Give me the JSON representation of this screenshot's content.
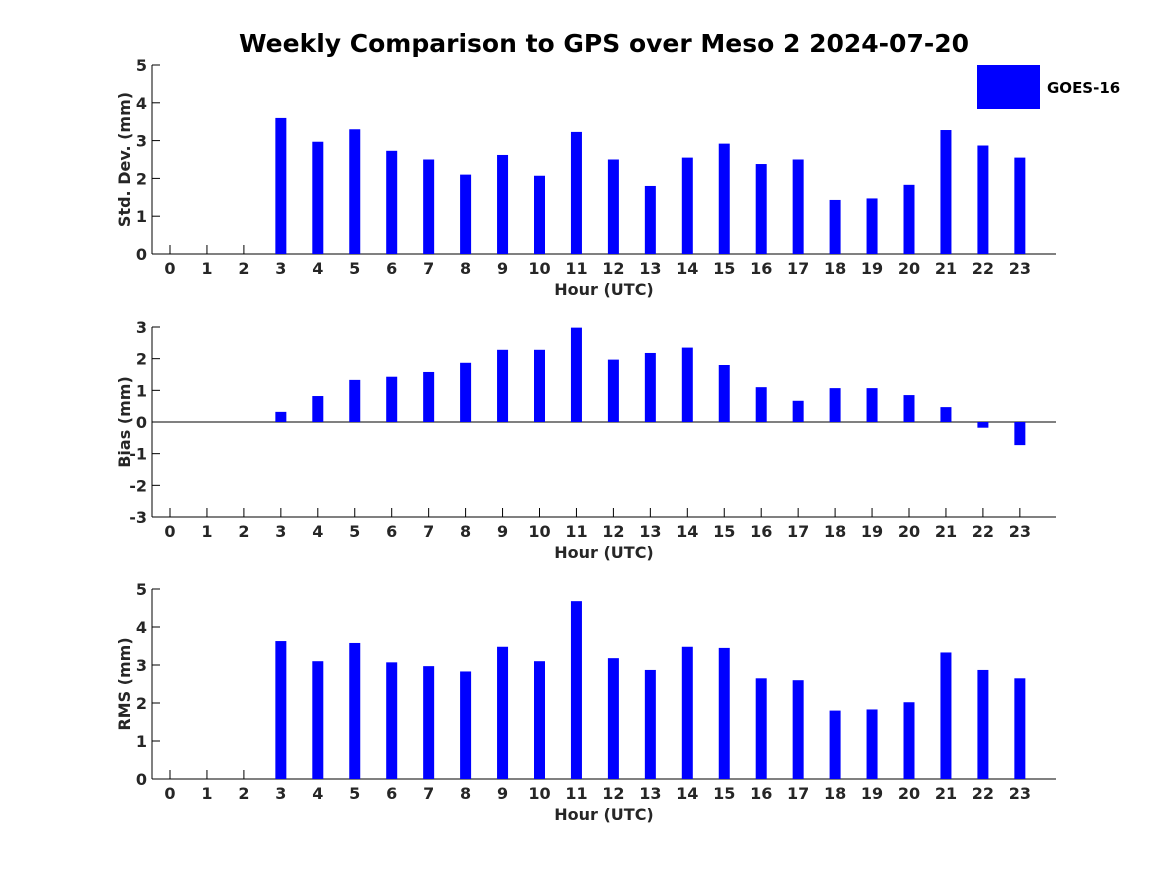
{
  "title": "Weekly Comparison to GPS over Meso 2 2024-07-20",
  "legend": {
    "label": "GOES-16",
    "color": "#0000ff"
  },
  "chart_data": [
    {
      "type": "bar",
      "name": "std-dev",
      "xlabel": "Hour (UTC)",
      "ylabel": "Std. Dev. (mm)",
      "ylim": [
        0,
        5
      ],
      "yticks": [
        "0",
        "1",
        "2",
        "3",
        "4",
        "5"
      ],
      "categories": [
        "0",
        "1",
        "2",
        "3",
        "4",
        "5",
        "6",
        "7",
        "8",
        "9",
        "10",
        "11",
        "12",
        "13",
        "14",
        "15",
        "16",
        "17",
        "18",
        "19",
        "20",
        "21",
        "22",
        "23"
      ],
      "series": [
        {
          "name": "GOES-16",
          "values": [
            null,
            null,
            null,
            3.6,
            2.97,
            3.3,
            2.73,
            2.5,
            2.1,
            2.62,
            2.07,
            3.23,
            2.5,
            1.8,
            2.55,
            2.92,
            2.38,
            2.5,
            1.43,
            1.47,
            1.83,
            3.28,
            2.87,
            2.55
          ]
        }
      ]
    },
    {
      "type": "bar",
      "name": "bias",
      "xlabel": "Hour (UTC)",
      "ylabel": "Bias (mm)",
      "ylim": [
        -3,
        3
      ],
      "yticks": [
        "-3",
        "-2",
        "-1",
        "0",
        "1",
        "2",
        "3"
      ],
      "categories": [
        "0",
        "1",
        "2",
        "3",
        "4",
        "5",
        "6",
        "7",
        "8",
        "9",
        "10",
        "11",
        "12",
        "13",
        "14",
        "15",
        "16",
        "17",
        "18",
        "19",
        "20",
        "21",
        "22",
        "23"
      ],
      "series": [
        {
          "name": "GOES-16",
          "values": [
            null,
            null,
            null,
            0.32,
            0.82,
            1.33,
            1.43,
            1.58,
            1.87,
            2.28,
            2.28,
            2.98,
            1.97,
            2.18,
            2.35,
            1.8,
            1.1,
            0.67,
            1.07,
            1.07,
            0.85,
            0.47,
            -0.18,
            -0.73
          ]
        }
      ]
    },
    {
      "type": "bar",
      "name": "rms",
      "xlabel": "Hour (UTC)",
      "ylabel": "RMS (mm)",
      "ylim": [
        0,
        5
      ],
      "yticks": [
        "0",
        "1",
        "2",
        "3",
        "4",
        "5"
      ],
      "categories": [
        "0",
        "1",
        "2",
        "3",
        "4",
        "5",
        "6",
        "7",
        "8",
        "9",
        "10",
        "11",
        "12",
        "13",
        "14",
        "15",
        "16",
        "17",
        "18",
        "19",
        "20",
        "21",
        "22",
        "23"
      ],
      "series": [
        {
          "name": "GOES-16",
          "values": [
            null,
            null,
            null,
            3.63,
            3.1,
            3.58,
            3.07,
            2.97,
            2.83,
            3.48,
            3.1,
            4.68,
            3.18,
            2.87,
            3.48,
            3.45,
            2.65,
            2.6,
            1.8,
            1.83,
            2.02,
            3.33,
            2.87,
            2.65
          ]
        }
      ]
    }
  ]
}
